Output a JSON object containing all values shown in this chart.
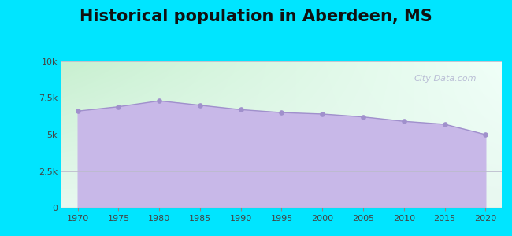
{
  "title": "Historical population in Aberdeen, MS",
  "years": [
    1970,
    1975,
    1980,
    1985,
    1990,
    1995,
    2000,
    2005,
    2010,
    2015,
    2020
  ],
  "population": [
    6600,
    6900,
    7300,
    7000,
    6700,
    6500,
    6400,
    6200,
    5900,
    5700,
    5000
  ],
  "fill_color": "#c8b8e8",
  "line_color": "#a090cc",
  "marker_color": "#a090cc",
  "background_outer": "#00e5ff",
  "ylim": [
    0,
    10000
  ],
  "yticks": [
    0,
    2500,
    5000,
    7500,
    10000
  ],
  "ytick_labels": [
    "0",
    "2.5k",
    "5k",
    "7.5k",
    "10k"
  ],
  "title_fontsize": 15,
  "watermark": "City-Data.com",
  "grad_top_left": "#c8f0d0",
  "grad_top_right": "#f0fff8",
  "grad_bottom": "#e8f8f0"
}
